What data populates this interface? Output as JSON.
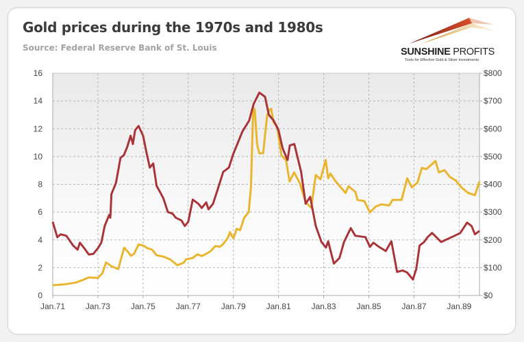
{
  "header": {
    "title": "Gold prices during the 1970s and 1980s",
    "subtitle": "Source: Federal Reserve Bank of St. Louis"
  },
  "logo": {
    "name_bold": "SUNSHINE",
    "name_light": " PROFITS",
    "tagline": "Tools for Effective Gold & Silver Investments"
  },
  "chart_data": {
    "type": "line",
    "title": "Gold prices during the 1970s and 1980s",
    "xlim": [
      1971,
      1989.9
    ],
    "x_ticks": [
      1971,
      1973,
      1975,
      1977,
      1979,
      1981,
      1983,
      1985,
      1987,
      1989
    ],
    "x_tick_labels": [
      "Jan.71",
      "Jan.73",
      "Jan.75",
      "Jan.77",
      "Jan.79",
      "Jan.81",
      "Jan.83",
      "Jan.85",
      "Jan.87",
      "Jan.89"
    ],
    "y_left": {
      "lim": [
        0,
        16
      ],
      "ticks": [
        0,
        2,
        4,
        6,
        8,
        10,
        12,
        14,
        16
      ],
      "tick_labels": [
        "0",
        "2",
        "4",
        "6",
        "8",
        "10",
        "12",
        "14",
        "16"
      ]
    },
    "y_right": {
      "lim": [
        0,
        800
      ],
      "ticks": [
        0,
        100,
        200,
        300,
        400,
        500,
        600,
        700,
        800
      ],
      "tick_labels": [
        "$0",
        "$100",
        "$200",
        "$300",
        "$400",
        "$500",
        "$600",
        "$700",
        "$800"
      ]
    },
    "grid": true,
    "series": [
      {
        "axis": "left",
        "color": "#a8343a",
        "points": [
          [
            1971.0,
            5.3
          ],
          [
            1971.2,
            4.2
          ],
          [
            1971.35,
            4.4
          ],
          [
            1971.6,
            4.3
          ],
          [
            1971.9,
            3.6
          ],
          [
            1972.1,
            3.3
          ],
          [
            1972.2,
            3.8
          ],
          [
            1972.35,
            3.5
          ],
          [
            1972.6,
            2.95
          ],
          [
            1972.8,
            3.0
          ],
          [
            1973.0,
            3.4
          ],
          [
            1973.15,
            3.8
          ],
          [
            1973.3,
            5.0
          ],
          [
            1973.5,
            5.8
          ],
          [
            1973.55,
            5.6
          ],
          [
            1973.6,
            7.3
          ],
          [
            1973.8,
            8.1
          ],
          [
            1974.0,
            9.9
          ],
          [
            1974.15,
            10.1
          ],
          [
            1974.3,
            10.7
          ],
          [
            1974.45,
            11.5
          ],
          [
            1974.55,
            10.9
          ],
          [
            1974.65,
            11.9
          ],
          [
            1974.8,
            12.2
          ],
          [
            1975.0,
            11.5
          ],
          [
            1975.15,
            10.3
          ],
          [
            1975.3,
            9.2
          ],
          [
            1975.45,
            9.5
          ],
          [
            1975.6,
            7.9
          ],
          [
            1975.9,
            7.0
          ],
          [
            1976.1,
            6.0
          ],
          [
            1976.3,
            5.9
          ],
          [
            1976.45,
            5.6
          ],
          [
            1976.7,
            5.4
          ],
          [
            1976.85,
            5.0
          ],
          [
            1977.0,
            5.3
          ],
          [
            1977.2,
            6.9
          ],
          [
            1977.45,
            6.6
          ],
          [
            1977.6,
            6.3
          ],
          [
            1977.8,
            6.7
          ],
          [
            1977.9,
            6.2
          ],
          [
            1978.1,
            6.6
          ],
          [
            1978.3,
            7.6
          ],
          [
            1978.55,
            8.9
          ],
          [
            1978.8,
            9.2
          ],
          [
            1979.0,
            10.2
          ],
          [
            1979.2,
            11.0
          ],
          [
            1979.4,
            11.8
          ],
          [
            1979.7,
            12.6
          ],
          [
            1979.9,
            13.8
          ],
          [
            1980.15,
            14.6
          ],
          [
            1980.4,
            14.3
          ],
          [
            1980.57,
            13.0
          ],
          [
            1980.78,
            12.6
          ],
          [
            1981.0,
            11.9
          ],
          [
            1981.18,
            10.6
          ],
          [
            1981.4,
            9.75
          ],
          [
            1981.5,
            10.8
          ],
          [
            1981.7,
            10.9
          ],
          [
            1982.0,
            8.9
          ],
          [
            1982.2,
            6.6
          ],
          [
            1982.4,
            7.1
          ],
          [
            1982.65,
            5.0
          ],
          [
            1982.9,
            3.85
          ],
          [
            1983.1,
            3.45
          ],
          [
            1983.2,
            3.9
          ],
          [
            1983.45,
            2.3
          ],
          [
            1983.7,
            2.7
          ],
          [
            1983.9,
            3.85
          ],
          [
            1984.2,
            4.85
          ],
          [
            1984.4,
            4.3
          ],
          [
            1984.85,
            4.2
          ],
          [
            1985.05,
            3.5
          ],
          [
            1985.2,
            3.8
          ],
          [
            1985.45,
            3.5
          ],
          [
            1985.75,
            3.2
          ],
          [
            1986.0,
            3.9
          ],
          [
            1986.25,
            1.7
          ],
          [
            1986.5,
            1.8
          ],
          [
            1986.7,
            1.65
          ],
          [
            1986.95,
            1.15
          ],
          [
            1987.1,
            1.9
          ],
          [
            1987.25,
            3.6
          ],
          [
            1987.45,
            3.85
          ],
          [
            1987.6,
            4.2
          ],
          [
            1987.8,
            4.5
          ],
          [
            1988.2,
            3.85
          ],
          [
            1988.4,
            4.0
          ],
          [
            1988.8,
            4.3
          ],
          [
            1989.05,
            4.5
          ],
          [
            1989.35,
            5.25
          ],
          [
            1989.55,
            5.0
          ],
          [
            1989.7,
            4.4
          ],
          [
            1989.9,
            4.65
          ]
        ]
      },
      {
        "axis": "right",
        "color": "#e9b52f",
        "points": [
          [
            1971.0,
            37
          ],
          [
            1971.5,
            40
          ],
          [
            1972.0,
            46
          ],
          [
            1972.3,
            55
          ],
          [
            1972.6,
            65
          ],
          [
            1973.0,
            63
          ],
          [
            1973.2,
            80
          ],
          [
            1973.36,
            119
          ],
          [
            1973.6,
            105
          ],
          [
            1973.9,
            95
          ],
          [
            1974.16,
            172
          ],
          [
            1974.3,
            160
          ],
          [
            1974.46,
            143
          ],
          [
            1974.6,
            150
          ],
          [
            1974.8,
            184
          ],
          [
            1975.0,
            180
          ],
          [
            1975.2,
            170
          ],
          [
            1975.4,
            165
          ],
          [
            1975.6,
            145
          ],
          [
            1975.9,
            140
          ],
          [
            1976.2,
            130
          ],
          [
            1976.52,
            109
          ],
          [
            1976.8,
            118
          ],
          [
            1976.9,
            130
          ],
          [
            1977.2,
            135
          ],
          [
            1977.4,
            148
          ],
          [
            1977.6,
            142
          ],
          [
            1977.8,
            150
          ],
          [
            1978.0,
            160
          ],
          [
            1978.2,
            178
          ],
          [
            1978.4,
            175
          ],
          [
            1978.55,
            185
          ],
          [
            1978.75,
            207
          ],
          [
            1978.85,
            228
          ],
          [
            1979.0,
            205
          ],
          [
            1979.15,
            240
          ],
          [
            1979.3,
            235
          ],
          [
            1979.48,
            280
          ],
          [
            1979.68,
            300
          ],
          [
            1979.78,
            390
          ],
          [
            1979.88,
            676
          ],
          [
            1979.95,
            668
          ],
          [
            1980.05,
            545
          ],
          [
            1980.15,
            512
          ],
          [
            1980.32,
            512
          ],
          [
            1980.5,
            650
          ],
          [
            1980.6,
            668
          ],
          [
            1980.67,
            672
          ],
          [
            1980.78,
            623
          ],
          [
            1980.93,
            610
          ],
          [
            1981.13,
            504
          ],
          [
            1981.33,
            488
          ],
          [
            1981.49,
            410
          ],
          [
            1981.69,
            443
          ],
          [
            1981.94,
            405
          ],
          [
            1982.2,
            336
          ],
          [
            1982.45,
            315
          ],
          [
            1982.65,
            434
          ],
          [
            1982.86,
            418
          ],
          [
            1983.09,
            488
          ],
          [
            1983.2,
            422
          ],
          [
            1983.3,
            439
          ],
          [
            1983.5,
            414
          ],
          [
            1983.97,
            369
          ],
          [
            1984.1,
            393
          ],
          [
            1984.4,
            373
          ],
          [
            1984.5,
            344
          ],
          [
            1984.8,
            340
          ],
          [
            1985.05,
            299
          ],
          [
            1985.3,
            320
          ],
          [
            1985.55,
            328
          ],
          [
            1985.9,
            324
          ],
          [
            1986.05,
            344
          ],
          [
            1986.45,
            344
          ],
          [
            1986.7,
            422
          ],
          [
            1986.9,
            389
          ],
          [
            1987.15,
            406
          ],
          [
            1987.35,
            459
          ],
          [
            1987.55,
            455
          ],
          [
            1987.95,
            484
          ],
          [
            1988.1,
            443
          ],
          [
            1988.35,
            451
          ],
          [
            1988.6,
            426
          ],
          [
            1988.85,
            414
          ],
          [
            1989.1,
            389
          ],
          [
            1989.4,
            369
          ],
          [
            1989.7,
            361
          ],
          [
            1989.9,
            410
          ]
        ]
      }
    ]
  }
}
